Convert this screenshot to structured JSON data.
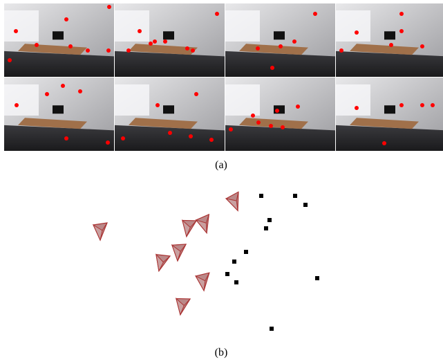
{
  "figure": {
    "caption_a": "(a)",
    "caption_b": "(b)"
  }
}
